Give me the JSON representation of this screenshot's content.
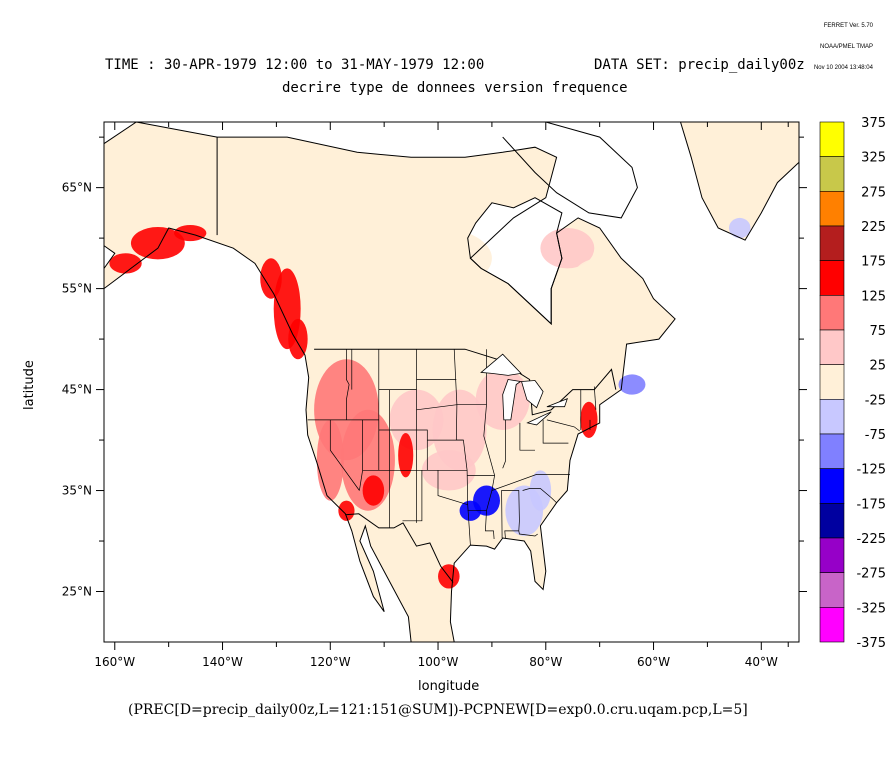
{
  "stamp": {
    "line1": "FERRET Ver. 5.70",
    "line2": "NOAA/PMEL TMAP",
    "line3": "Nov 10 2004 13:48:04"
  },
  "header": {
    "time": "TIME : 30-APR-1979 12:00 to 31-MAY-1979 12:00",
    "dataset": "DATA SET: precip_daily00z",
    "subtitle": "decrire type de donnees version frequence"
  },
  "footer": {
    "formula": "(PREC[D=precip_daily00z,L=121:151@SUM])-PCPNEW[D=exp0.0.cru.uqam.pcp,L=5]"
  },
  "chart_data": {
    "type": "heatmap",
    "title": "TIME : 30-APR-1979 12:00 to 31-MAY-1979 12:00",
    "subtitle": "decrire type de donnees version frequence",
    "xlabel": "longitude",
    "ylabel": "latitude",
    "xlim": [
      -162,
      -33
    ],
    "ylim": [
      20,
      71.5
    ],
    "x_ticks": [
      {
        "value": -160,
        "label": "160°W"
      },
      {
        "value": -140,
        "label": "140°W"
      },
      {
        "value": -120,
        "label": "120°W"
      },
      {
        "value": -100,
        "label": "100°W"
      },
      {
        "value": -80,
        "label": "80°W"
      },
      {
        "value": -60,
        "label": "60°W"
      },
      {
        "value": -40,
        "label": "40°W"
      }
    ],
    "x_minor_ticks": [
      -150,
      -130,
      -110,
      -90,
      -70,
      -50,
      -35
    ],
    "y_ticks": [
      {
        "value": 25,
        "label": "25°N"
      },
      {
        "value": 35,
        "label": "35°N"
      },
      {
        "value": 45,
        "label": "45°N"
      },
      {
        "value": 55,
        "label": "55°N"
      },
      {
        "value": 65,
        "label": "65°N"
      }
    ],
    "y_minor_ticks": [
      30,
      40,
      50,
      60,
      70
    ],
    "colorbar": {
      "levels": [
        375,
        325,
        275,
        225,
        175,
        125,
        75,
        25,
        -25,
        -75,
        -125,
        -175,
        -225,
        -275,
        -325,
        -375
      ],
      "colors": [
        "#ffff00",
        "#c8c84a",
        "#ff8000",
        "#b41e1e",
        "#ff0000",
        "#ff7878",
        "#ffc8c8",
        "#fff0d8",
        "#c8c8ff",
        "#8080ff",
        "#0000ff",
        "#0000a0",
        "#9600c8",
        "#c864c8",
        "#ff00ff"
      ]
    },
    "regions": [
      {
        "name": "Canada/Arctic background",
        "value": 0,
        "band": "-25 to 25"
      },
      {
        "name": "Alaska coast",
        "value": 150,
        "band": "125 to 175"
      },
      {
        "name": "British Columbia coast",
        "value": 140,
        "band": "125 to 175"
      },
      {
        "name": "Western US interior",
        "value": 90,
        "band": "75 to 125"
      },
      {
        "name": "Colorado Rockies",
        "value": 160,
        "band": "125 to 175"
      },
      {
        "name": "Southern Plains",
        "value": 60,
        "band": "25 to 75"
      },
      {
        "name": "Lower Mississippi Valley",
        "value": -140,
        "band": "-175 to -125"
      },
      {
        "name": "Southeast US",
        "value": -60,
        "band": "-75 to -25"
      },
      {
        "name": "Northeast US coast",
        "value": 150,
        "band": "125 to 175"
      },
      {
        "name": "Nova Scotia",
        "value": -120,
        "band": "-125 to -75"
      },
      {
        "name": "South Texas",
        "value": 150,
        "band": "125 to 175"
      },
      {
        "name": "Greenland south tip",
        "value": -50,
        "band": "-75 to -25"
      }
    ],
    "grid": false,
    "legend": "right"
  }
}
